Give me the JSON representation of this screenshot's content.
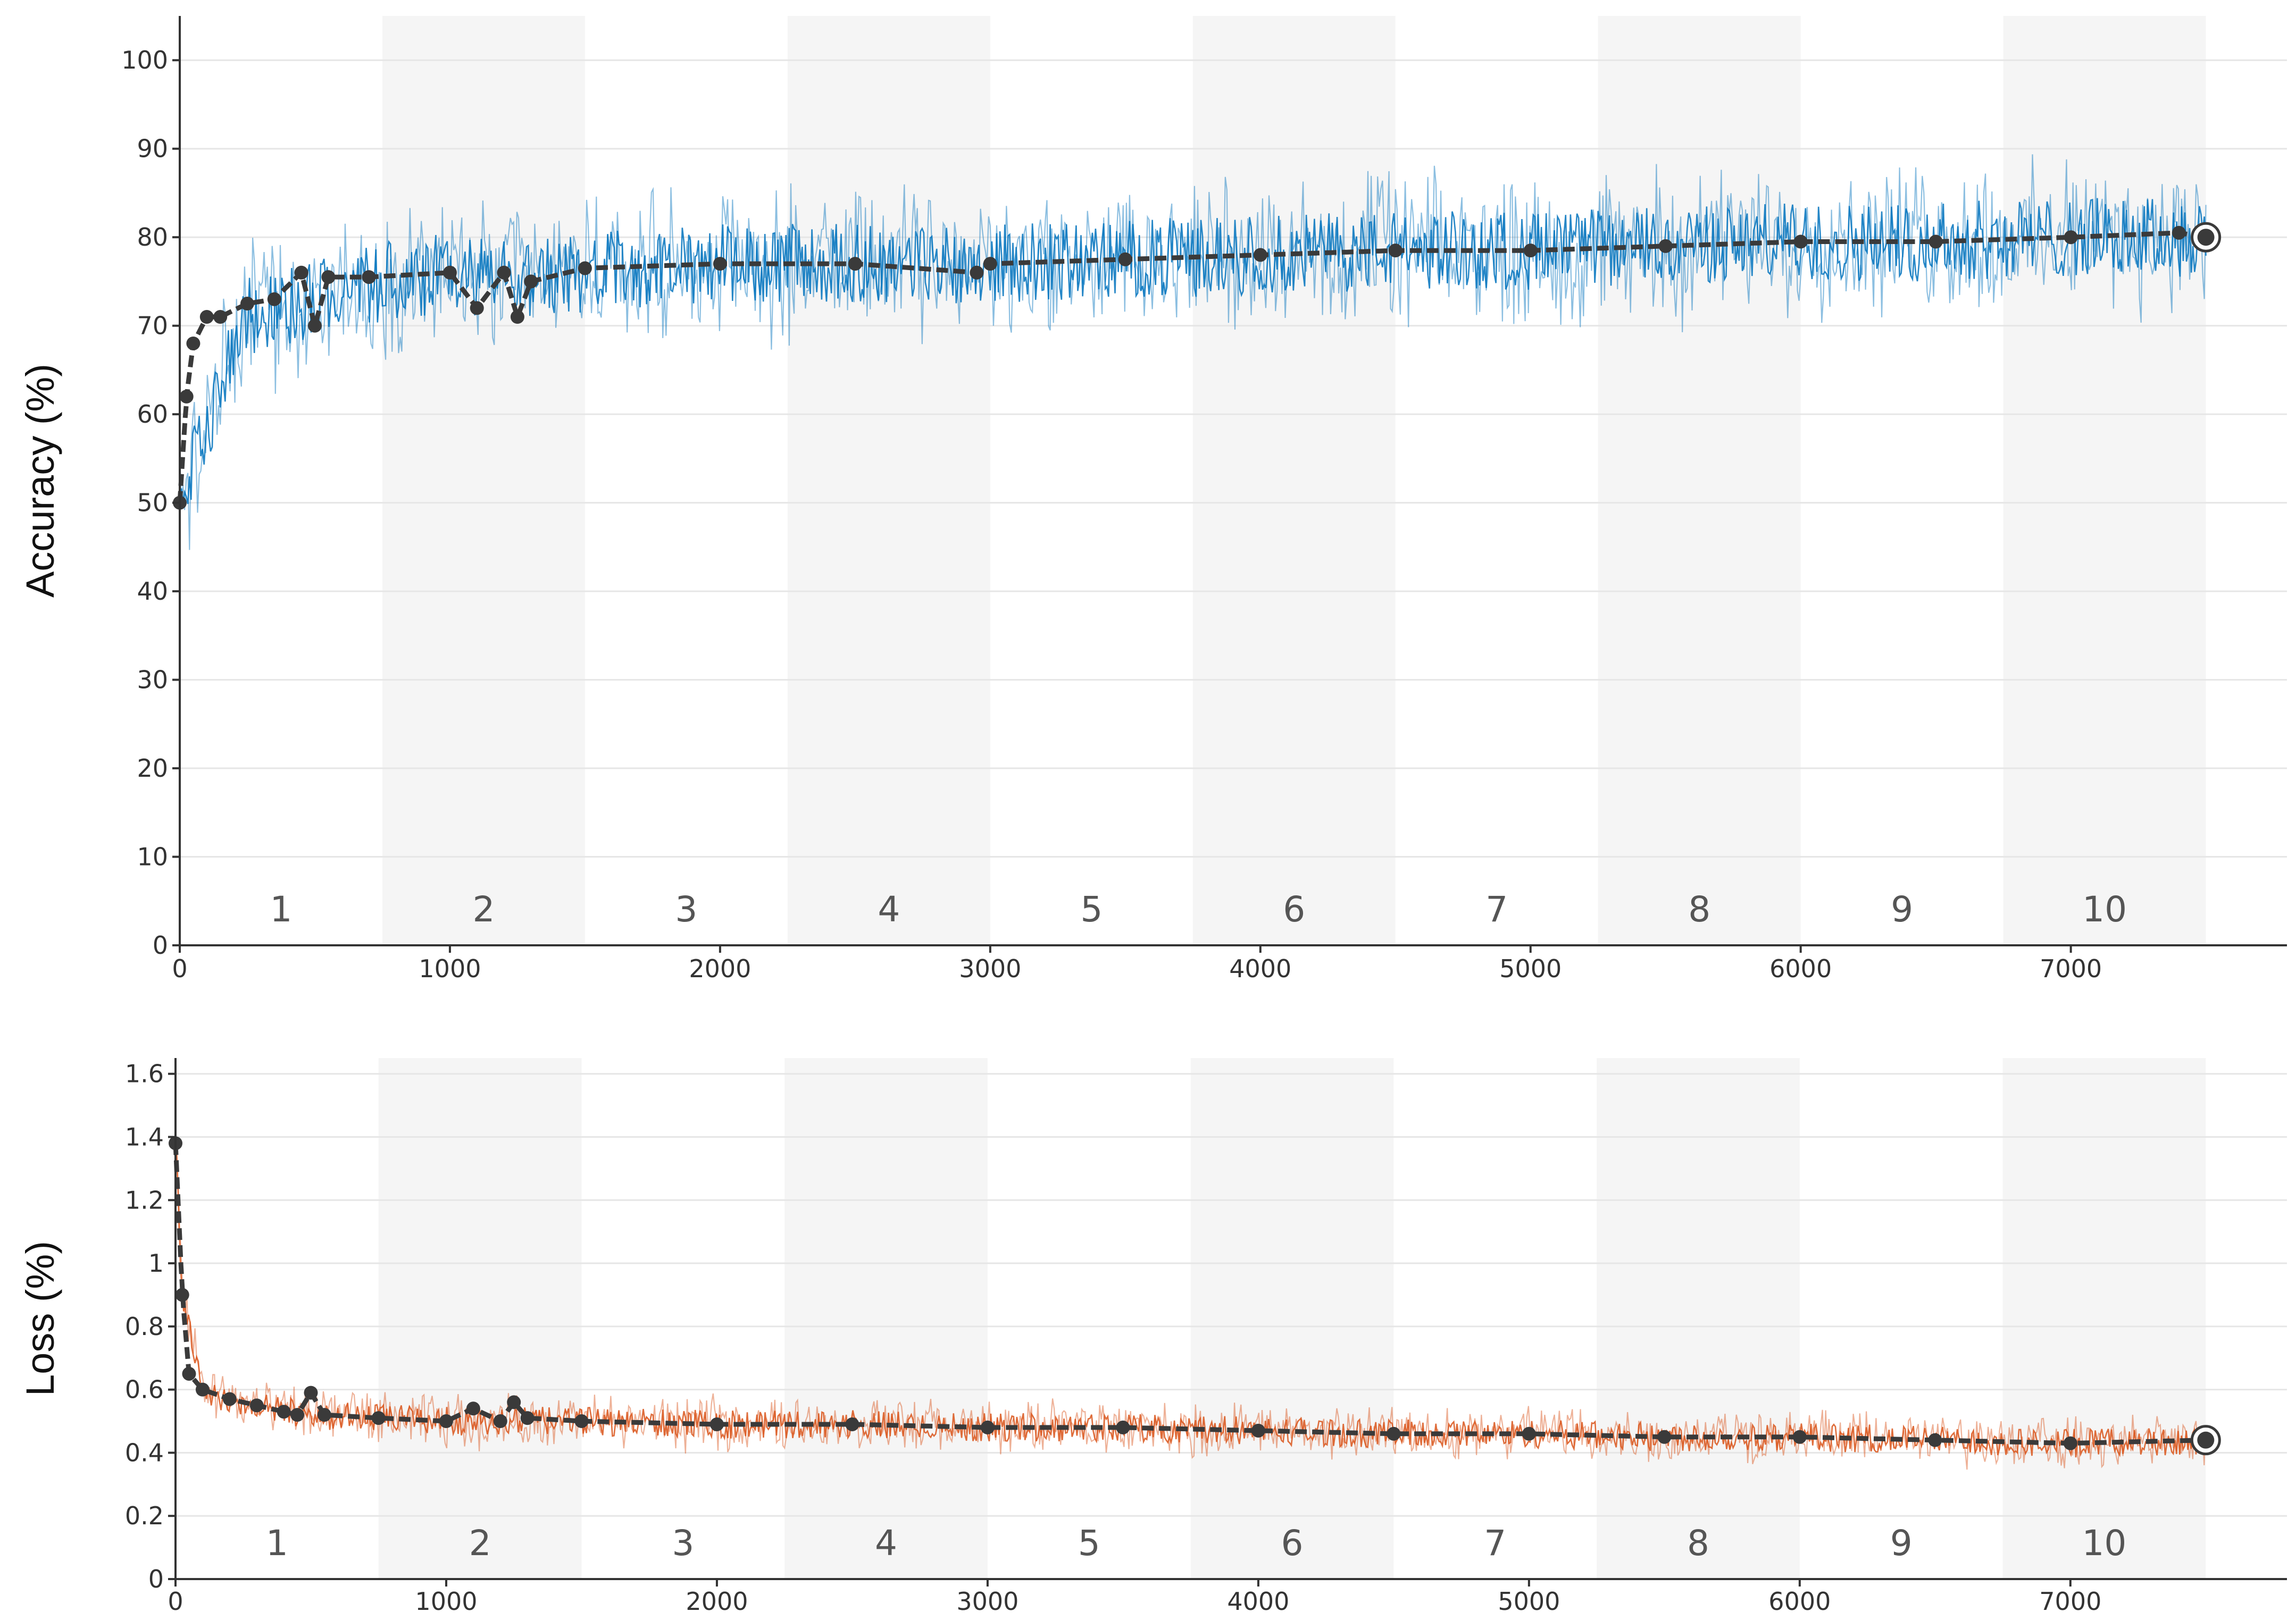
{
  "colors": {
    "accuracy_raw": "#0072bd",
    "loss_raw": "#d95319",
    "smoothed": "#3a3a3a",
    "epoch_band": "#f5f5f5",
    "grid": "#e6e6e6",
    "axis": "#333333"
  },
  "chart_data": [
    {
      "type": "line",
      "ylabel": "Accuracy (%)",
      "xlabel": "",
      "xlim": [
        0,
        7800
      ],
      "ylim": [
        0,
        105
      ],
      "xticks": [
        "0",
        "1000",
        "2000",
        "3000",
        "4000",
        "5000",
        "6000",
        "7000"
      ],
      "yticks": [
        "0",
        "10",
        "20",
        "30",
        "40",
        "50",
        "60",
        "70",
        "80",
        "90",
        "100"
      ],
      "grid": true,
      "epochs": [
        "1",
        "2",
        "3",
        "4",
        "5",
        "6",
        "7",
        "8",
        "9",
        "10"
      ],
      "iterations_per_epoch": 750,
      "series": [
        {
          "role": "raw",
          "x": [
            0,
            250,
            500,
            750,
            1000,
            1250,
            1500,
            2000,
            2500,
            3000,
            3500,
            4000,
            4500,
            5000,
            5500,
            6000,
            6500,
            7000,
            7500
          ],
          "y": [
            50,
            71,
            73,
            75,
            76,
            75,
            76,
            77,
            77,
            77,
            77.5,
            78,
            78.5,
            78.5,
            79,
            79.5,
            79.5,
            80,
            80
          ],
          "spread": 10
        },
        {
          "role": "smoothed",
          "x": [
            0,
            25,
            50,
            100,
            150,
            250,
            350,
            450,
            500,
            550,
            700,
            1000,
            1100,
            1200,
            1250,
            1300,
            1500,
            2000,
            2500,
            2950,
            3000,
            3500,
            4000,
            4500,
            5000,
            5500,
            6000,
            6500,
            7000,
            7400,
            7500
          ],
          "y": [
            50,
            62,
            68,
            71,
            71,
            72.5,
            73,
            76,
            70,
            75.5,
            75.5,
            76,
            72,
            76,
            71,
            75,
            76.5,
            77,
            77,
            76,
            77,
            77.5,
            78,
            78.5,
            78.5,
            79,
            79.5,
            79.5,
            80,
            80.5,
            80
          ]
        }
      ]
    },
    {
      "type": "line",
      "ylabel": "Loss (%)",
      "xlabel": "",
      "xlim": [
        0,
        7800
      ],
      "ylim": [
        0,
        1.65
      ],
      "xticks": [
        "0",
        "1000",
        "2000",
        "3000",
        "4000",
        "5000",
        "6000",
        "7000"
      ],
      "yticks": [
        "0",
        "0.2",
        "0.4",
        "0.6",
        "0.8",
        "1",
        "1.2",
        "1.4",
        "1.6"
      ],
      "grid": true,
      "epochs": [
        "1",
        "2",
        "3",
        "4",
        "5",
        "6",
        "7",
        "8",
        "9",
        "10"
      ],
      "iterations_per_epoch": 750,
      "series": [
        {
          "role": "raw",
          "x": [
            0,
            25,
            100,
            250,
            500,
            750,
            1000,
            1500,
            2000,
            2500,
            3000,
            3500,
            4000,
            4500,
            5000,
            5500,
            6000,
            6500,
            7000,
            7500
          ],
          "y": [
            1.38,
            0.9,
            0.6,
            0.55,
            0.52,
            0.51,
            0.5,
            0.5,
            0.49,
            0.49,
            0.48,
            0.48,
            0.47,
            0.46,
            0.46,
            0.45,
            0.45,
            0.44,
            0.43,
            0.44
          ],
          "spread": 0.1
        },
        {
          "role": "smoothed",
          "x": [
            0,
            25,
            50,
            100,
            200,
            300,
            400,
            450,
            500,
            550,
            750,
            1000,
            1100,
            1200,
            1250,
            1300,
            1500,
            2000,
            2500,
            3000,
            3500,
            4000,
            4500,
            5000,
            5500,
            6000,
            6500,
            7000,
            7500
          ],
          "y": [
            1.38,
            0.9,
            0.65,
            0.6,
            0.57,
            0.55,
            0.53,
            0.52,
            0.59,
            0.52,
            0.51,
            0.5,
            0.54,
            0.5,
            0.56,
            0.51,
            0.5,
            0.49,
            0.49,
            0.48,
            0.48,
            0.47,
            0.46,
            0.46,
            0.45,
            0.45,
            0.44,
            0.43,
            0.44
          ]
        }
      ]
    }
  ]
}
